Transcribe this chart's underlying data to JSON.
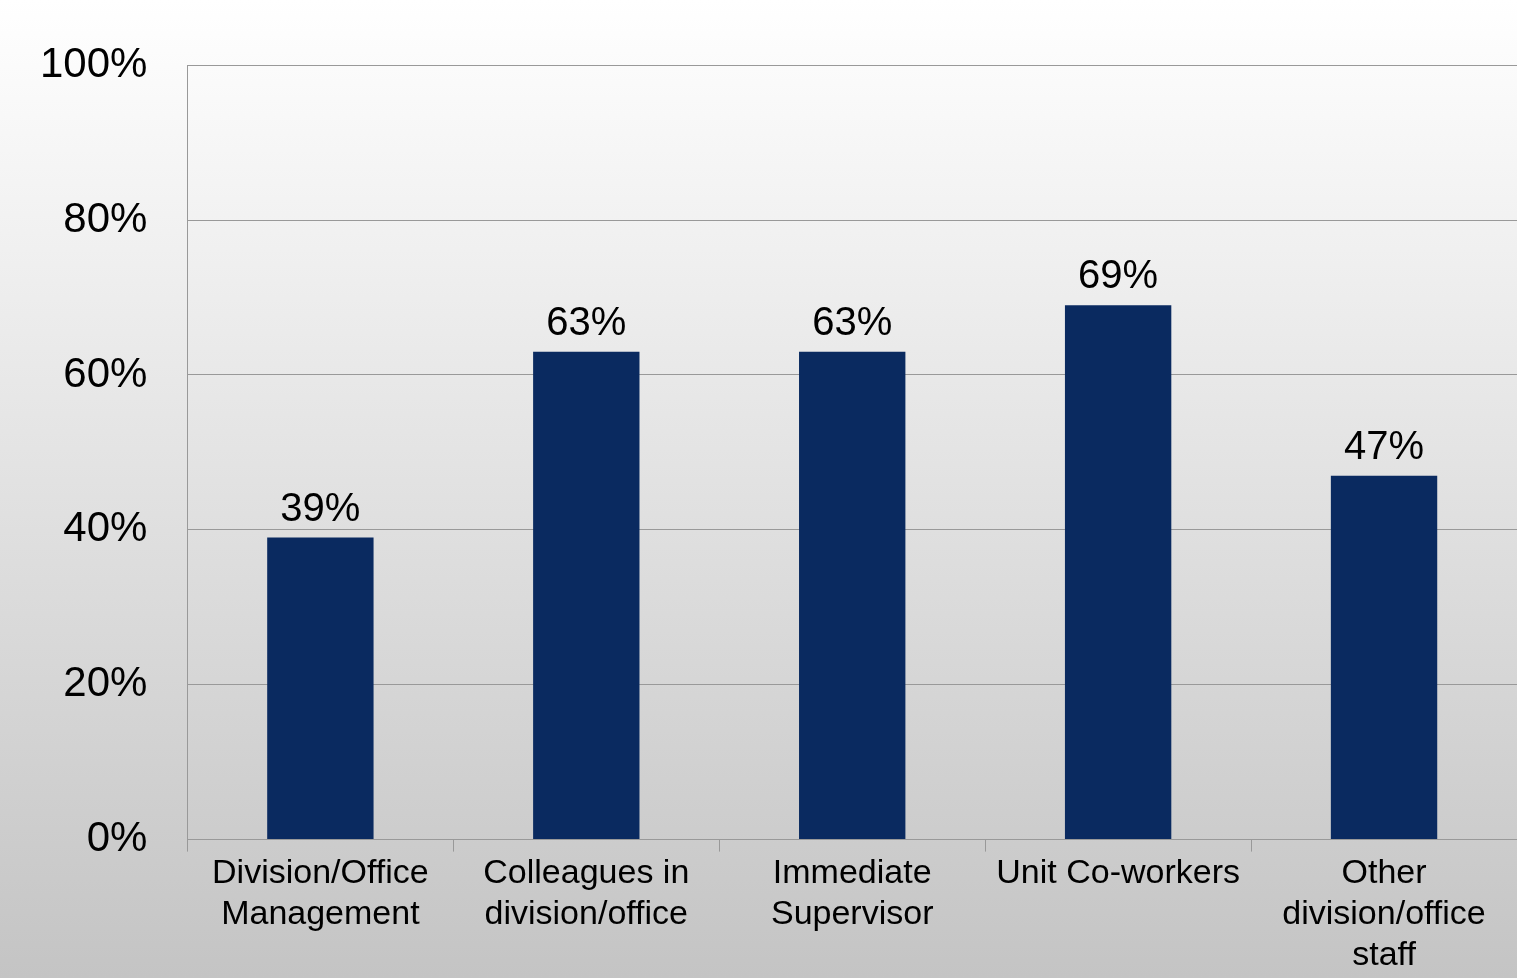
{
  "chart_data": {
    "type": "bar",
    "categories": [
      "Division/Office Management",
      "Colleagues in division/office",
      "Immediate Supervisor",
      "Unit Co-workers",
      "Other division/office staff"
    ],
    "values": [
      39,
      63,
      63,
      69,
      47
    ],
    "value_labels": [
      "39%",
      "63%",
      "63%",
      "69%",
      "47%"
    ],
    "color": "#0a2a60",
    "ylim": [
      0,
      100
    ],
    "yticks": [
      {
        "value": 0,
        "label": "0%"
      },
      {
        "value": 20,
        "label": "20%"
      },
      {
        "value": 40,
        "label": "40%"
      },
      {
        "value": 60,
        "label": "60%"
      },
      {
        "value": 80,
        "label": "80%"
      },
      {
        "value": 100,
        "label": "100%"
      }
    ],
    "grid": "y",
    "legend": false
  }
}
